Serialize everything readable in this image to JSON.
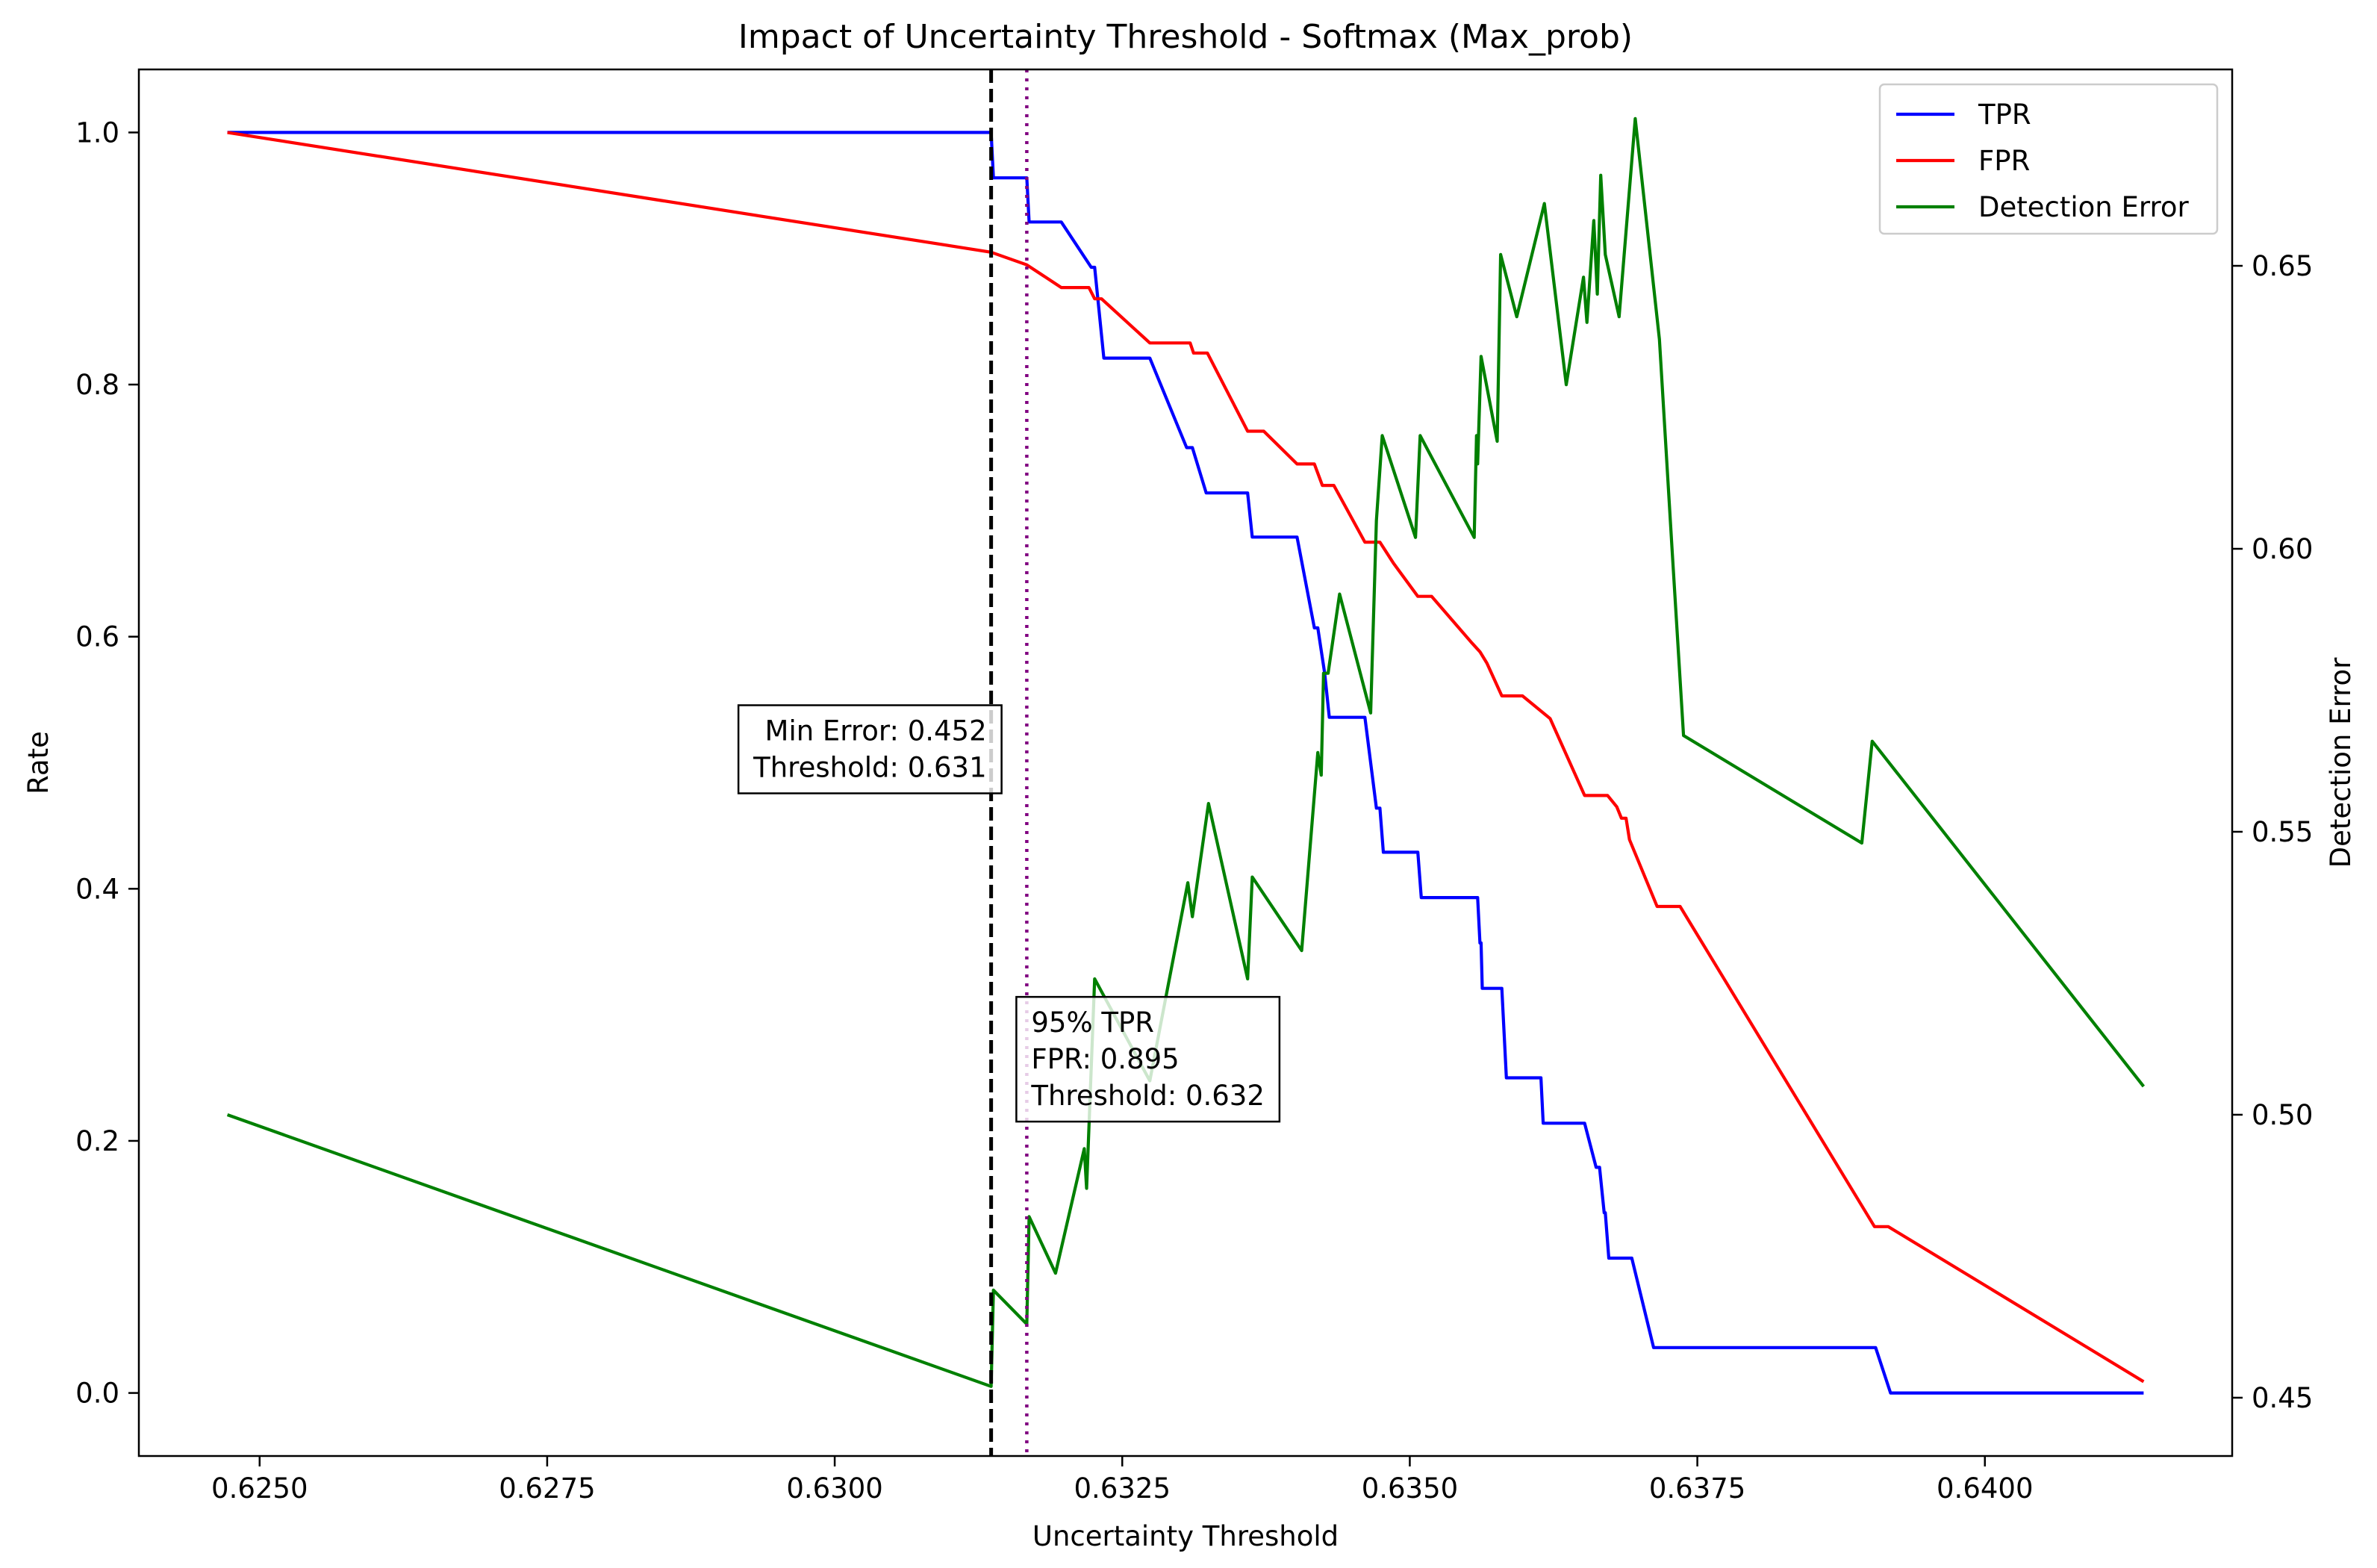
{
  "chart_data": {
    "type": "line",
    "title": "Impact of Uncertainty Threshold - Softmax (Max_prob)",
    "xlabel": "Uncertainty Threshold",
    "ylabel": "Rate",
    "y2label": "Detection Error",
    "xlim": [
      0.62395,
      0.64215
    ],
    "ylim": [
      -0.05,
      1.05
    ],
    "y2lim": [
      0.4397,
      0.6847
    ],
    "xticks": [
      "0.6250",
      "0.6275",
      "0.6300",
      "0.6325",
      "0.6350",
      "0.6375",
      "0.6400"
    ],
    "yticks": [
      "0.0",
      "0.2",
      "0.4",
      "0.6",
      "0.8",
      "1.0"
    ],
    "y2ticks": [
      "0.45",
      "0.50",
      "0.55",
      "0.60",
      "0.65"
    ],
    "grid": false,
    "legend_position": "top-right",
    "colors": {
      "tpr": "#0000ff",
      "fpr": "#ff0000",
      "error": "#008000",
      "min_error_line": "#000000",
      "tpr95_line": "#800080",
      "y2label": "#008000"
    },
    "series": [
      {
        "name": "TPR",
        "axis": "left",
        "x": [
          0.62472,
          0.63136,
          0.63138,
          0.63167,
          0.63169,
          0.63197,
          0.63223,
          0.63226,
          0.63234,
          0.63274,
          0.63306,
          0.63311,
          0.63323,
          0.63359,
          0.63363,
          0.63402,
          0.63417,
          0.6342,
          0.63426,
          0.6343,
          0.63445,
          0.63461,
          0.63471,
          0.63474,
          0.63477,
          0.63507,
          0.6351,
          0.63559,
          0.63561,
          0.63562,
          0.63563,
          0.6358,
          0.63584,
          0.63614,
          0.63616,
          0.63652,
          0.63662,
          0.63665,
          0.63669,
          0.6367,
          0.63673,
          0.63693,
          0.63712,
          0.63738,
          0.63905,
          0.63918,
          0.64138
        ],
        "values": [
          1.0,
          1.0,
          0.964,
          0.964,
          0.929,
          0.929,
          0.893,
          0.893,
          0.821,
          0.821,
          0.75,
          0.75,
          0.714,
          0.714,
          0.679,
          0.679,
          0.607,
          0.607,
          0.571,
          0.536,
          0.536,
          0.536,
          0.464,
          0.464,
          0.429,
          0.429,
          0.393,
          0.393,
          0.357,
          0.357,
          0.321,
          0.321,
          0.25,
          0.25,
          0.214,
          0.214,
          0.179,
          0.179,
          0.143,
          0.143,
          0.107,
          0.107,
          0.036,
          0.036,
          0.036,
          0.0,
          0.0
        ]
      },
      {
        "name": "FPR",
        "axis": "left",
        "x": [
          0.62472,
          0.63136,
          0.63167,
          0.63197,
          0.63221,
          0.63226,
          0.63232,
          0.63274,
          0.63309,
          0.63312,
          0.63324,
          0.63359,
          0.63373,
          0.63402,
          0.63417,
          0.63424,
          0.63434,
          0.63461,
          0.63474,
          0.63486,
          0.63507,
          0.63519,
          0.63553,
          0.63561,
          0.63567,
          0.6358,
          0.63598,
          0.63622,
          0.63652,
          0.63672,
          0.6368,
          0.63684,
          0.63688,
          0.63691,
          0.63715,
          0.63735,
          0.63904,
          0.63916,
          0.64138
        ],
        "values": [
          1.0,
          0.905,
          0.895,
          0.877,
          0.877,
          0.868,
          0.868,
          0.833,
          0.833,
          0.825,
          0.825,
          0.763,
          0.763,
          0.737,
          0.737,
          0.72,
          0.72,
          0.675,
          0.675,
          0.658,
          0.632,
          0.632,
          0.596,
          0.588,
          0.579,
          0.553,
          0.553,
          0.535,
          0.474,
          0.474,
          0.465,
          0.456,
          0.456,
          0.439,
          0.386,
          0.386,
          0.132,
          0.132,
          0.009
        ]
      },
      {
        "name": "Detection Error",
        "axis": "right",
        "x": [
          0.62472,
          0.63136,
          0.63138,
          0.63167,
          0.63169,
          0.63192,
          0.63217,
          0.63219,
          0.63226,
          0.63274,
          0.63307,
          0.63311,
          0.63325,
          0.63359,
          0.63363,
          0.63406,
          0.6342,
          0.63423,
          0.63425,
          0.63429,
          0.63439,
          0.63466,
          0.63471,
          0.63476,
          0.63505,
          0.63509,
          0.63556,
          0.63558,
          0.63559,
          0.63562,
          0.63576,
          0.63579,
          0.63593,
          0.63617,
          0.63636,
          0.63651,
          0.63654,
          0.6366,
          0.63663,
          0.63666,
          0.6367,
          0.63682,
          0.63696,
          0.63717,
          0.63728,
          0.63738,
          0.63893,
          0.63902,
          0.64138
        ],
        "values": [
          0.5,
          0.452,
          0.469,
          0.463,
          0.482,
          0.472,
          0.494,
          0.487,
          0.524,
          0.506,
          0.541,
          0.535,
          0.555,
          0.524,
          0.542,
          0.529,
          0.564,
          0.56,
          0.578,
          0.578,
          0.592,
          0.571,
          0.605,
          0.62,
          0.602,
          0.62,
          0.602,
          0.62,
          0.615,
          0.634,
          0.619,
          0.652,
          0.641,
          0.661,
          0.629,
          0.648,
          0.64,
          0.658,
          0.645,
          0.666,
          0.652,
          0.641,
          0.676,
          0.637,
          0.6,
          0.567,
          0.548,
          0.566,
          0.505
        ]
      }
    ],
    "vlines": [
      {
        "name": "min-error-threshold",
        "x": 0.63136,
        "style": "dashed",
        "color": "#000000"
      },
      {
        "name": "tpr95-threshold",
        "x": 0.63167,
        "style": "dotted",
        "color": "#800080"
      }
    ],
    "annotations": [
      {
        "name": "min-error",
        "lines": [
          "Min Error: 0.452",
          "Threshold: 0.631"
        ],
        "x": 0.63136,
        "y": 0.5,
        "anchor": "end"
      },
      {
        "name": "tpr95",
        "lines": [
          "95% TPR",
          "FPR: 0.895",
          "Threshold: 0.632"
        ],
        "x": 0.63167,
        "y": 0.3,
        "anchor": "start"
      }
    ]
  }
}
